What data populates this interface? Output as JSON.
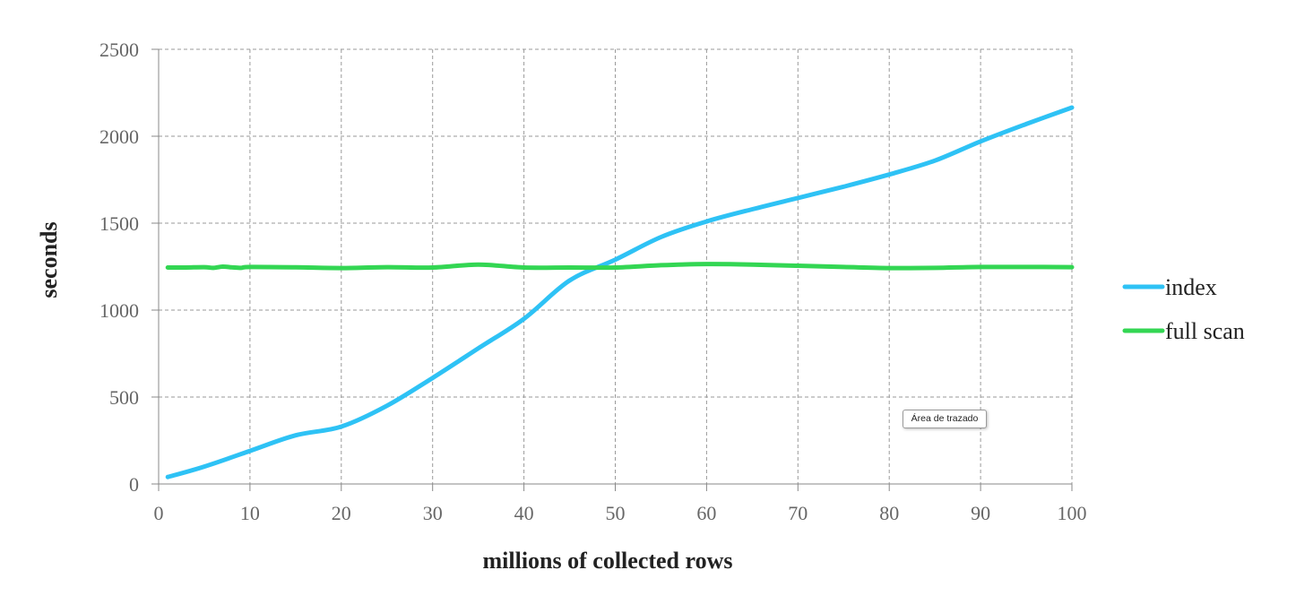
{
  "chart_data": {
    "type": "line",
    "title": "",
    "xlabel": "millions of collected rows",
    "ylabel": "seconds",
    "xlim": [
      0,
      100
    ],
    "ylim": [
      0,
      2500
    ],
    "x_ticks": [
      0,
      10,
      20,
      30,
      40,
      50,
      60,
      70,
      80,
      90,
      100
    ],
    "y_ticks": [
      0,
      500,
      1000,
      1500,
      2000,
      2500
    ],
    "grid": true,
    "legend_position": "right",
    "series": [
      {
        "name": "index",
        "color": "#2ec2f5",
        "points": [
          [
            1,
            40
          ],
          [
            5,
            100
          ],
          [
            10,
            190
          ],
          [
            15,
            280
          ],
          [
            20,
            330
          ],
          [
            25,
            450
          ],
          [
            30,
            610
          ],
          [
            35,
            780
          ],
          [
            40,
            950
          ],
          [
            45,
            1170
          ],
          [
            50,
            1290
          ],
          [
            55,
            1420
          ],
          [
            60,
            1510
          ],
          [
            65,
            1580
          ],
          [
            70,
            1645
          ],
          [
            75,
            1710
          ],
          [
            80,
            1780
          ],
          [
            85,
            1860
          ],
          [
            90,
            1970
          ],
          [
            95,
            2070
          ],
          [
            100,
            2165
          ]
        ]
      },
      {
        "name": "full scan",
        "color": "#33d653",
        "points": [
          [
            1,
            1245
          ],
          [
            3,
            1245
          ],
          [
            5,
            1247
          ],
          [
            6,
            1243
          ],
          [
            7,
            1250
          ],
          [
            8,
            1246
          ],
          [
            9,
            1243
          ],
          [
            10,
            1248
          ],
          [
            15,
            1246
          ],
          [
            20,
            1242
          ],
          [
            25,
            1247
          ],
          [
            30,
            1245
          ],
          [
            35,
            1262
          ],
          [
            40,
            1245
          ],
          [
            45,
            1245
          ],
          [
            50,
            1245
          ],
          [
            55,
            1258
          ],
          [
            60,
            1265
          ],
          [
            65,
            1262
          ],
          [
            70,
            1255
          ],
          [
            75,
            1248
          ],
          [
            80,
            1242
          ],
          [
            85,
            1243
          ],
          [
            90,
            1248
          ],
          [
            95,
            1248
          ],
          [
            100,
            1247
          ]
        ]
      }
    ]
  },
  "tooltip": {
    "text": "Área de trazado"
  }
}
